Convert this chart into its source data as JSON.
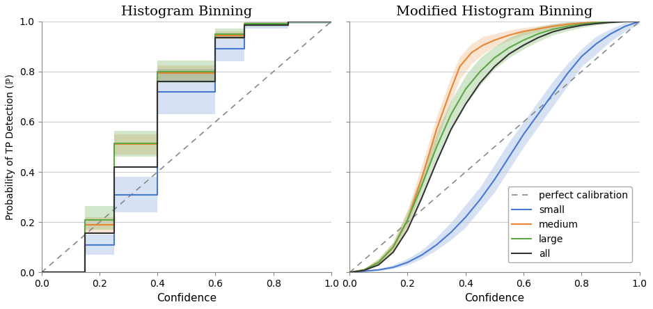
{
  "title1": "Histogram Binning",
  "title2": "Modified Histogram Binning",
  "xlabel": "Confidence",
  "ylabel": "Probability of TP Detection (ℙ)",
  "xlim": [
    0.0,
    1.0
  ],
  "ylim": [
    0.0,
    1.0
  ],
  "colors": {
    "small": "#4878cf",
    "medium": "#e88534",
    "large": "#5da745",
    "all": "#333333",
    "perfect": "#888888"
  },
  "hist_small": {
    "x": [
      0.0,
      0.15,
      0.15,
      0.25,
      0.25,
      0.4,
      0.4,
      0.6,
      0.6,
      0.7,
      0.7,
      0.85,
      0.85,
      1.0
    ],
    "y": [
      0.0,
      0.0,
      0.11,
      0.11,
      0.31,
      0.31,
      0.72,
      0.72,
      0.89,
      0.89,
      0.985,
      0.985,
      1.0,
      1.0
    ],
    "y_lo": [
      0.0,
      0.0,
      0.07,
      0.07,
      0.24,
      0.24,
      0.63,
      0.63,
      0.84,
      0.84,
      0.97,
      0.97,
      0.99,
      0.99
    ],
    "y_hi": [
      0.0,
      0.0,
      0.15,
      0.15,
      0.38,
      0.38,
      0.81,
      0.81,
      0.94,
      0.94,
      1.0,
      1.0,
      1.0,
      1.0
    ]
  },
  "hist_medium": {
    "x": [
      0.0,
      0.15,
      0.15,
      0.25,
      0.25,
      0.4,
      0.4,
      0.6,
      0.6,
      0.7,
      0.7,
      0.85,
      0.85,
      1.0
    ],
    "y": [
      0.0,
      0.0,
      0.19,
      0.19,
      0.51,
      0.51,
      0.795,
      0.795,
      0.945,
      0.945,
      0.99,
      0.99,
      1.0,
      1.0
    ],
    "y_lo": [
      0.0,
      0.0,
      0.16,
      0.16,
      0.47,
      0.47,
      0.765,
      0.765,
      0.93,
      0.93,
      0.985,
      0.985,
      0.995,
      0.995
    ],
    "y_hi": [
      0.0,
      0.0,
      0.22,
      0.22,
      0.55,
      0.55,
      0.825,
      0.825,
      0.96,
      0.96,
      0.995,
      0.995,
      1.0,
      1.0
    ]
  },
  "hist_large": {
    "x": [
      0.0,
      0.15,
      0.15,
      0.25,
      0.25,
      0.4,
      0.4,
      0.6,
      0.6,
      0.7,
      0.7,
      0.85,
      0.85,
      1.0
    ],
    "y": [
      0.0,
      0.0,
      0.21,
      0.21,
      0.515,
      0.515,
      0.8,
      0.8,
      0.95,
      0.95,
      0.99,
      0.99,
      1.0,
      1.0
    ],
    "y_lo": [
      0.0,
      0.0,
      0.17,
      0.17,
      0.46,
      0.46,
      0.755,
      0.755,
      0.93,
      0.93,
      0.98,
      0.98,
      0.99,
      0.99
    ],
    "y_hi": [
      0.0,
      0.0,
      0.265,
      0.265,
      0.565,
      0.565,
      0.845,
      0.845,
      0.97,
      0.97,
      0.998,
      0.998,
      1.0,
      1.0
    ]
  },
  "hist_all": {
    "x": [
      0.0,
      0.15,
      0.15,
      0.25,
      0.25,
      0.4,
      0.4,
      0.6,
      0.6,
      0.7,
      0.7,
      0.85,
      0.85,
      1.0
    ],
    "y": [
      0.0,
      0.0,
      0.155,
      0.155,
      0.42,
      0.42,
      0.76,
      0.76,
      0.935,
      0.935,
      0.985,
      0.985,
      1.0,
      1.0
    ]
  },
  "mod_small": {
    "x": [
      0.0,
      0.05,
      0.1,
      0.15,
      0.2,
      0.25,
      0.3,
      0.35,
      0.4,
      0.45,
      0.5,
      0.55,
      0.6,
      0.65,
      0.7,
      0.75,
      0.8,
      0.85,
      0.9,
      0.95,
      1.0
    ],
    "y": [
      0.0,
      0.005,
      0.01,
      0.02,
      0.04,
      0.07,
      0.11,
      0.16,
      0.22,
      0.29,
      0.37,
      0.46,
      0.55,
      0.63,
      0.71,
      0.79,
      0.86,
      0.91,
      0.95,
      0.98,
      1.0
    ],
    "y_lo": [
      0.0,
      0.002,
      0.007,
      0.015,
      0.03,
      0.055,
      0.09,
      0.13,
      0.18,
      0.25,
      0.32,
      0.41,
      0.5,
      0.58,
      0.66,
      0.74,
      0.82,
      0.87,
      0.92,
      0.96,
      0.99
    ],
    "y_hi": [
      0.0,
      0.008,
      0.015,
      0.03,
      0.055,
      0.09,
      0.14,
      0.2,
      0.27,
      0.34,
      0.43,
      0.52,
      0.6,
      0.68,
      0.76,
      0.83,
      0.89,
      0.94,
      0.97,
      0.995,
      1.0
    ]
  },
  "mod_medium": {
    "x": [
      0.0,
      0.05,
      0.1,
      0.15,
      0.2,
      0.25,
      0.3,
      0.35,
      0.38,
      0.42,
      0.46,
      0.5,
      0.55,
      0.6,
      0.65,
      0.7,
      0.75,
      0.8,
      0.85,
      0.9,
      0.95,
      1.0
    ],
    "y": [
      0.0,
      0.01,
      0.04,
      0.1,
      0.21,
      0.38,
      0.57,
      0.73,
      0.82,
      0.875,
      0.905,
      0.925,
      0.945,
      0.96,
      0.97,
      0.98,
      0.988,
      0.993,
      0.997,
      0.999,
      1.0,
      1.0
    ],
    "y_lo": [
      0.0,
      0.007,
      0.03,
      0.085,
      0.18,
      0.34,
      0.52,
      0.68,
      0.77,
      0.83,
      0.87,
      0.9,
      0.925,
      0.945,
      0.958,
      0.97,
      0.98,
      0.988,
      0.993,
      0.997,
      0.999,
      1.0
    ],
    "y_hi": [
      0.0,
      0.015,
      0.055,
      0.12,
      0.25,
      0.43,
      0.62,
      0.78,
      0.86,
      0.91,
      0.94,
      0.95,
      0.965,
      0.975,
      0.982,
      0.99,
      0.995,
      0.998,
      1.0,
      1.0,
      1.0,
      1.0
    ]
  },
  "mod_large": {
    "x": [
      0.0,
      0.05,
      0.1,
      0.15,
      0.2,
      0.25,
      0.3,
      0.35,
      0.4,
      0.45,
      0.5,
      0.55,
      0.6,
      0.65,
      0.7,
      0.75,
      0.8,
      0.85,
      0.9,
      0.95,
      1.0
    ],
    "y": [
      0.0,
      0.01,
      0.04,
      0.1,
      0.21,
      0.35,
      0.5,
      0.63,
      0.73,
      0.8,
      0.855,
      0.895,
      0.925,
      0.95,
      0.968,
      0.98,
      0.989,
      0.995,
      0.998,
      1.0,
      1.0
    ],
    "y_lo": [
      0.0,
      0.007,
      0.03,
      0.085,
      0.185,
      0.31,
      0.45,
      0.575,
      0.67,
      0.745,
      0.81,
      0.855,
      0.89,
      0.92,
      0.945,
      0.962,
      0.975,
      0.985,
      0.992,
      0.997,
      1.0
    ],
    "y_hi": [
      0.0,
      0.015,
      0.055,
      0.12,
      0.245,
      0.395,
      0.555,
      0.685,
      0.785,
      0.855,
      0.9,
      0.935,
      0.96,
      0.978,
      0.99,
      0.997,
      1.0,
      1.0,
      1.0,
      1.0,
      1.0
    ]
  },
  "mod_all": {
    "x": [
      0.0,
      0.05,
      0.1,
      0.15,
      0.2,
      0.25,
      0.3,
      0.35,
      0.4,
      0.45,
      0.5,
      0.55,
      0.6,
      0.65,
      0.7,
      0.75,
      0.8,
      0.85,
      0.9,
      0.95,
      1.0
    ],
    "y": [
      0.0,
      0.008,
      0.03,
      0.08,
      0.17,
      0.3,
      0.44,
      0.57,
      0.67,
      0.755,
      0.82,
      0.87,
      0.905,
      0.935,
      0.958,
      0.973,
      0.984,
      0.991,
      0.996,
      0.999,
      1.0
    ]
  }
}
